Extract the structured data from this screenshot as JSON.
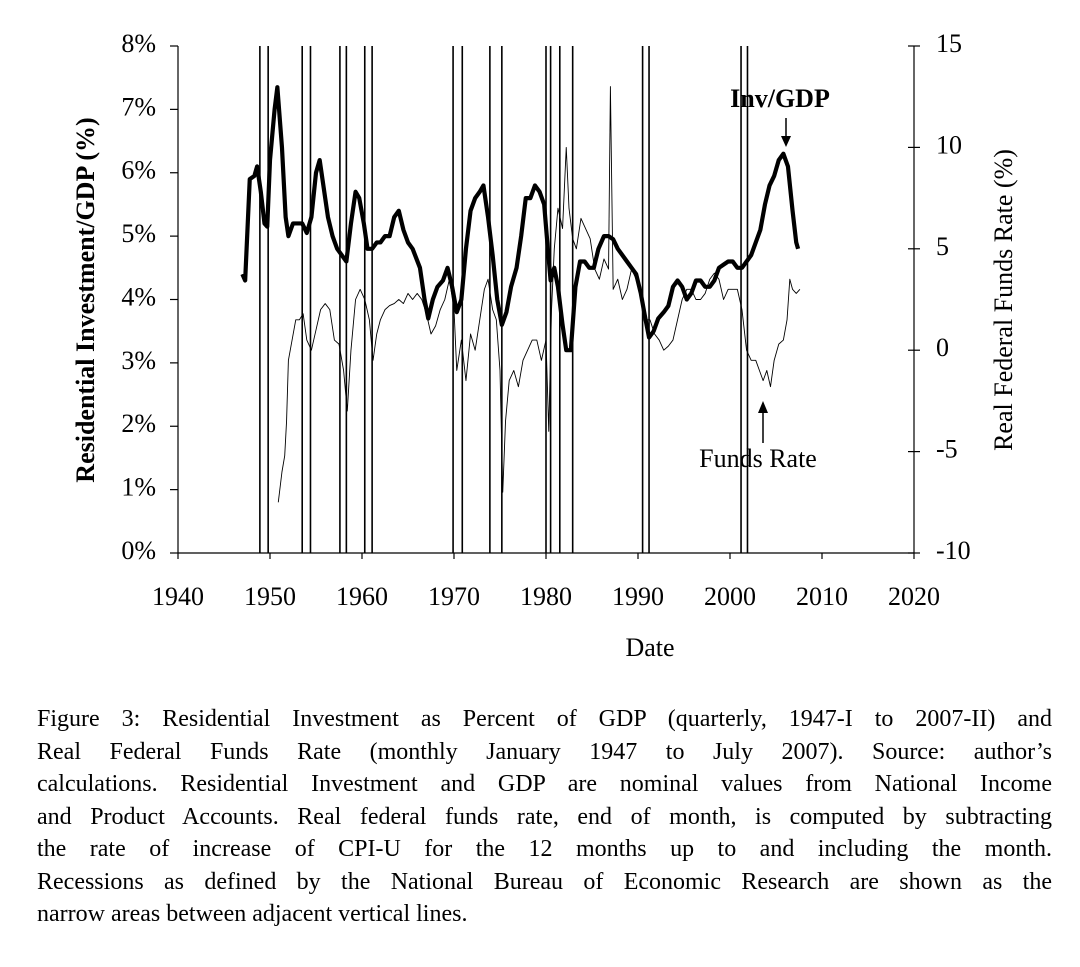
{
  "chart_data": {
    "type": "line",
    "xlabel": "Date",
    "ylabel": "Residential Investment/GDP (%)",
    "y2label": "Real Federal Funds Rate (%)",
    "xlim": [
      1940,
      2020
    ],
    "xticks": [
      1940,
      1950,
      1960,
      1970,
      1980,
      1990,
      2000,
      2010,
      2020
    ],
    "ylim": [
      0,
      8
    ],
    "yticks": [
      {
        "value": 0,
        "label": "0%"
      },
      {
        "value": 1,
        "label": "1%"
      },
      {
        "value": 2,
        "label": "2%"
      },
      {
        "value": 3,
        "label": "3%"
      },
      {
        "value": 4,
        "label": "4%"
      },
      {
        "value": 5,
        "label": "5%"
      },
      {
        "value": 6,
        "label": "6%"
      },
      {
        "value": 7,
        "label": "7%"
      },
      {
        "value": 8,
        "label": "8%"
      }
    ],
    "y2lim": [
      -10,
      15
    ],
    "y2ticks": [
      -10,
      -5,
      0,
      5,
      10,
      15
    ],
    "recessions": [
      [
        1948.9,
        1949.8
      ],
      [
        1953.5,
        1954.4
      ],
      [
        1957.6,
        1958.3
      ],
      [
        1960.3,
        1961.1
      ],
      [
        1969.9,
        1970.9
      ],
      [
        1973.9,
        1975.2
      ],
      [
        1980.0,
        1980.5
      ],
      [
        1981.5,
        1982.9
      ],
      [
        1990.5,
        1991.2
      ],
      [
        2001.2,
        2001.9
      ]
    ],
    "series": [
      {
        "name": "Inv/GDP",
        "color": "#000000",
        "x": [
          1947.0,
          1947.3,
          1947.8,
          1948.3,
          1948.6,
          1949.0,
          1949.4,
          1949.7,
          1950.0,
          1950.5,
          1950.8,
          1951.3,
          1951.7,
          1952.0,
          1952.5,
          1953.0,
          1953.5,
          1954.0,
          1954.5,
          1955.0,
          1955.4,
          1955.8,
          1956.3,
          1956.8,
          1957.3,
          1957.8,
          1958.3,
          1958.8,
          1959.3,
          1959.7,
          1960.2,
          1960.6,
          1961.1,
          1961.6,
          1962.0,
          1962.5,
          1963.0,
          1963.5,
          1964.0,
          1964.5,
          1965.0,
          1965.5,
          1966.3,
          1966.8,
          1967.2,
          1967.7,
          1968.2,
          1968.8,
          1969.3,
          1969.8,
          1970.3,
          1970.8,
          1971.3,
          1971.8,
          1972.3,
          1972.8,
          1973.2,
          1973.7,
          1974.2,
          1974.7,
          1975.2,
          1975.7,
          1976.2,
          1976.8,
          1977.3,
          1977.8,
          1978.3,
          1978.8,
          1979.3,
          1979.8,
          1980.2,
          1980.5,
          1980.9,
          1981.3,
          1981.8,
          1982.2,
          1982.7,
          1983.2,
          1983.7,
          1984.2,
          1984.7,
          1985.2,
          1985.7,
          1986.3,
          1986.8,
          1987.3,
          1987.8,
          1988.3,
          1988.8,
          1989.3,
          1989.8,
          1990.3,
          1990.8,
          1991.2,
          1991.7,
          1992.2,
          1992.8,
          1993.3,
          1993.8,
          1994.3,
          1994.8,
          1995.3,
          1995.8,
          1996.3,
          1996.8,
          1997.3,
          1997.8,
          1998.3,
          1998.8,
          1999.3,
          1999.8,
          2000.3,
          2000.8,
          2001.3,
          2001.8,
          2002.3,
          2002.8,
          2003.3,
          2003.8,
          2004.3,
          2004.8,
          2005.3,
          2005.8,
          2006.3,
          2006.8,
          2007.2,
          2007.4
        ],
        "values": [
          4.4,
          4.3,
          5.9,
          5.95,
          6.1,
          5.7,
          5.2,
          5.15,
          6.2,
          7.0,
          7.35,
          6.4,
          5.3,
          5.0,
          5.2,
          5.2,
          5.2,
          5.05,
          5.3,
          6.0,
          6.2,
          5.8,
          5.3,
          5.0,
          4.8,
          4.7,
          4.6,
          5.2,
          5.7,
          5.6,
          5.2,
          4.8,
          4.8,
          4.9,
          4.9,
          5.0,
          5.0,
          5.3,
          5.4,
          5.1,
          4.9,
          4.8,
          4.5,
          4.0,
          3.7,
          4.0,
          4.2,
          4.3,
          4.5,
          4.2,
          3.8,
          4.0,
          4.8,
          5.4,
          5.6,
          5.7,
          5.8,
          5.3,
          4.7,
          4.0,
          3.6,
          3.8,
          4.2,
          4.5,
          5.0,
          5.6,
          5.6,
          5.8,
          5.7,
          5.5,
          4.8,
          4.3,
          4.5,
          4.2,
          3.6,
          3.2,
          3.2,
          4.2,
          4.6,
          4.6,
          4.5,
          4.5,
          4.8,
          5.0,
          5.0,
          4.95,
          4.8,
          4.7,
          4.6,
          4.5,
          4.4,
          4.1,
          3.7,
          3.4,
          3.5,
          3.7,
          3.8,
          3.9,
          4.2,
          4.3,
          4.2,
          4.0,
          4.1,
          4.3,
          4.3,
          4.2,
          4.2,
          4.3,
          4.5,
          4.55,
          4.6,
          4.6,
          4.5,
          4.5,
          4.6,
          4.7,
          4.9,
          5.1,
          5.5,
          5.8,
          5.95,
          6.2,
          6.3,
          6.1,
          5.4,
          4.9,
          4.8
        ]
      },
      {
        "name": "Funds Rate",
        "color": "#000000",
        "axis": "y2",
        "x": [
          1950.9,
          1951.3,
          1951.6,
          1951.8,
          1952.0,
          1952.4,
          1952.8,
          1953.2,
          1953.6,
          1954.0,
          1954.5,
          1955.0,
          1955.5,
          1956.0,
          1956.5,
          1957.0,
          1957.5,
          1958.0,
          1958.4,
          1958.8,
          1959.3,
          1959.8,
          1960.3,
          1960.8,
          1961.2,
          1961.6,
          1962.0,
          1962.5,
          1963.0,
          1963.5,
          1964.0,
          1964.5,
          1965.0,
          1965.5,
          1966.0,
          1966.5,
          1967.0,
          1967.5,
          1968.0,
          1968.5,
          1969.0,
          1969.5,
          1970.0,
          1970.3,
          1970.8,
          1971.3,
          1971.8,
          1972.3,
          1972.8,
          1973.3,
          1973.7,
          1974.2,
          1974.6,
          1975.0,
          1975.3,
          1975.6,
          1976.0,
          1976.5,
          1977.0,
          1977.5,
          1978.0,
          1978.5,
          1979.0,
          1979.5,
          1980.0,
          1980.3,
          1980.6,
          1980.9,
          1981.3,
          1981.8,
          1982.2,
          1982.5,
          1982.9,
          1983.3,
          1983.8,
          1984.3,
          1984.8,
          1985.3,
          1985.8,
          1986.3,
          1986.8,
          1987.0,
          1987.3,
          1987.8,
          1988.3,
          1988.8,
          1989.3,
          1989.8,
          1990.3,
          1990.8,
          1991.3,
          1991.8,
          1992.3,
          1992.8,
          1993.3,
          1993.8,
          1994.3,
          1994.8,
          1995.3,
          1995.8,
          1996.3,
          1996.8,
          1997.3,
          1997.8,
          1998.3,
          1998.8,
          1999.3,
          1999.8,
          2000.3,
          2000.8,
          2001.3,
          2001.8,
          2002.3,
          2002.8,
          2003.2,
          2003.6,
          2004.0,
          2004.4,
          2004.8,
          2005.3,
          2005.8,
          2006.2,
          2006.5,
          2006.8,
          2007.2,
          2007.6
        ],
        "values": [
          -7.5,
          -6.0,
          -5.2,
          -3.5,
          -0.5,
          0.5,
          1.5,
          1.5,
          1.8,
          0.5,
          0.0,
          1.0,
          2.0,
          2.3,
          2.0,
          0.5,
          0.3,
          -1.0,
          -3.0,
          0.0,
          2.5,
          3.0,
          2.5,
          1.5,
          -0.5,
          0.8,
          1.5,
          2.0,
          2.2,
          2.3,
          2.5,
          2.3,
          2.8,
          2.5,
          2.8,
          2.5,
          1.8,
          0.8,
          1.2,
          2.0,
          2.5,
          3.5,
          2.0,
          -1.0,
          0.5,
          -1.5,
          0.8,
          0.0,
          1.5,
          3.0,
          3.5,
          2.0,
          1.5,
          -1.0,
          -7.0,
          -3.5,
          -1.5,
          -1.0,
          -1.8,
          -0.5,
          0.0,
          0.5,
          0.5,
          -0.5,
          0.5,
          -4.0,
          2.0,
          5.0,
          7.0,
          6.0,
          10.0,
          7.0,
          5.5,
          5.0,
          6.5,
          6.0,
          5.5,
          4.0,
          3.5,
          4.5,
          4.0,
          13.0,
          3.0,
          3.5,
          2.5,
          3.0,
          4.0,
          3.5,
          3.0,
          1.5,
          1.5,
          0.8,
          0.5,
          0.0,
          0.2,
          0.5,
          1.5,
          2.5,
          3.0,
          3.0,
          2.5,
          2.5,
          2.8,
          3.5,
          3.8,
          3.5,
          2.5,
          3.0,
          3.0,
          3.0,
          2.0,
          0.0,
          -0.5,
          -0.5,
          -1.0,
          -1.5,
          -1.0,
          -1.8,
          -0.5,
          0.3,
          0.5,
          1.5,
          3.5,
          3.0,
          2.8,
          3.0
        ]
      }
    ]
  },
  "caption": {
    "lines": [
      "Figure 3: Residential Investment as Percent of GDP (quarterly, 1947-I to 2007-II) and",
      "Real Federal Funds Rate (monthly January 1947 to July 2007). Source: author’s",
      "calculations. Residential Investment and GDP are nominal values from National Income",
      "and Product Accounts. Real federal funds rate, end of month, is computed by subtracting",
      "the rate of increase of CPI-U for the 12 months up to and including the month.",
      "Recessions as defined by the National Bureau of Economic Research are shown as the",
      "narrow areas between adjacent vertical lines."
    ]
  }
}
